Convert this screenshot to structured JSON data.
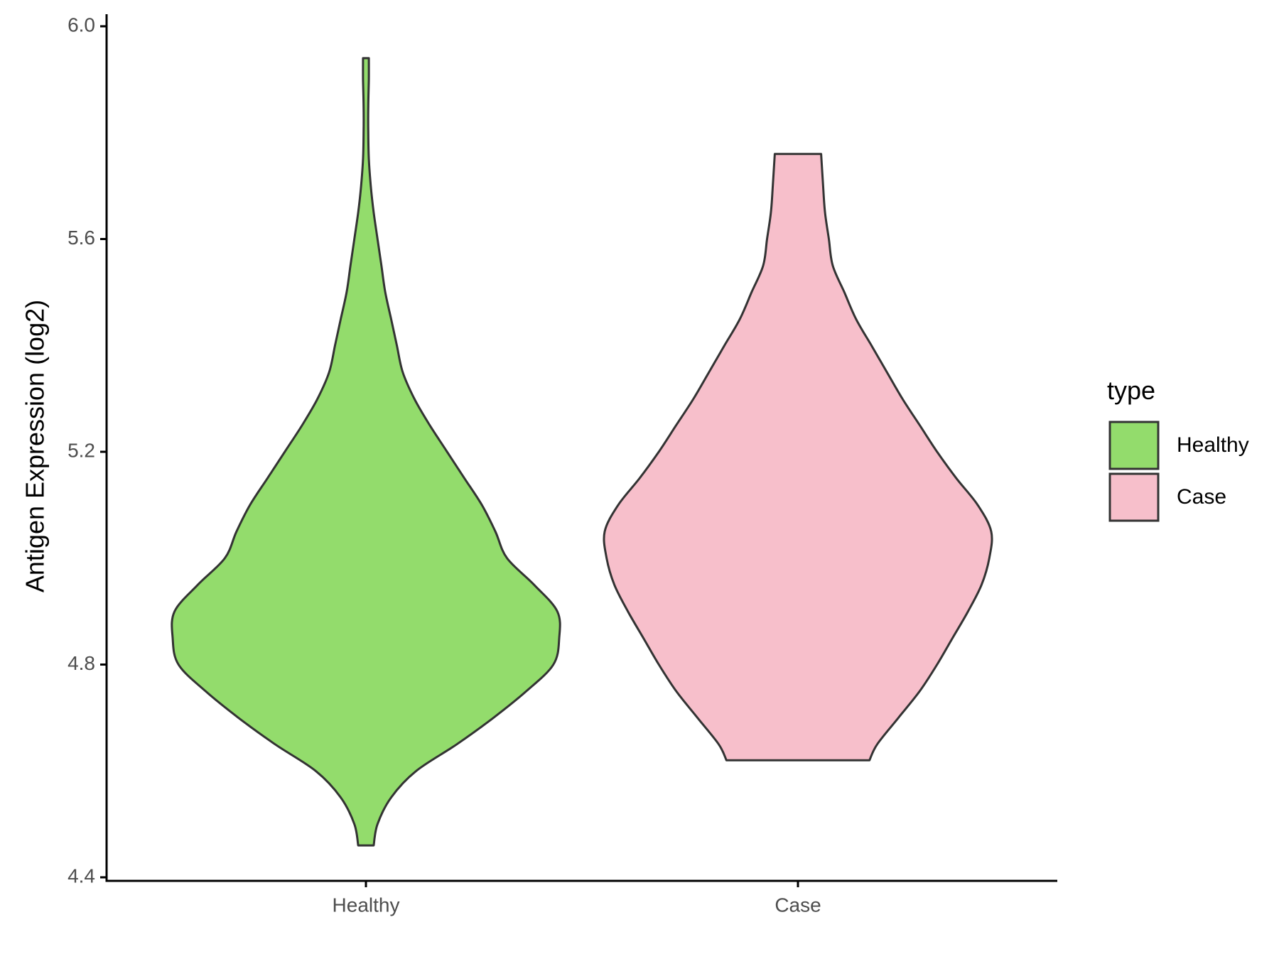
{
  "chart_data": {
    "type": "violin",
    "ylabel": "Antigen Expression (log2)",
    "xlabel": "",
    "ylim": [
      4.4,
      6.0
    ],
    "yticks": [
      "4.4",
      "4.8",
      "5.2",
      "5.6",
      "6.0"
    ],
    "categories": [
      "Healthy",
      "Case"
    ],
    "grid": false,
    "legend": {
      "title": "type",
      "placement": "right",
      "entries": [
        {
          "label": "Healthy",
          "color": "#93DC6C"
        },
        {
          "label": "Case",
          "color": "#F7BFCB"
        }
      ]
    },
    "series": [
      {
        "category": "Healthy",
        "color": "#93DC6C",
        "min": 4.46,
        "max": 5.94,
        "density_profile": [
          [
            4.46,
            0.04
          ],
          [
            4.5,
            0.06
          ],
          [
            4.55,
            0.13
          ],
          [
            4.6,
            0.26
          ],
          [
            4.65,
            0.47
          ],
          [
            4.7,
            0.66
          ],
          [
            4.75,
            0.83
          ],
          [
            4.8,
            0.97
          ],
          [
            4.85,
            1.0
          ],
          [
            4.9,
            0.99
          ],
          [
            4.95,
            0.87
          ],
          [
            5.0,
            0.73
          ],
          [
            5.05,
            0.67
          ],
          [
            5.1,
            0.6
          ],
          [
            5.15,
            0.51
          ],
          [
            5.2,
            0.42
          ],
          [
            5.25,
            0.33
          ],
          [
            5.3,
            0.25
          ],
          [
            5.35,
            0.19
          ],
          [
            5.4,
            0.16
          ],
          [
            5.45,
            0.13
          ],
          [
            5.5,
            0.1
          ],
          [
            5.55,
            0.08
          ],
          [
            5.6,
            0.06
          ],
          [
            5.65,
            0.04
          ],
          [
            5.7,
            0.025
          ],
          [
            5.75,
            0.015
          ],
          [
            5.8,
            0.012
          ],
          [
            5.85,
            0.012
          ],
          [
            5.9,
            0.015
          ],
          [
            5.94,
            0.015
          ]
        ]
      },
      {
        "category": "Case",
        "color": "#F7BFCB",
        "min": 4.62,
        "max": 5.76,
        "density_profile": [
          [
            4.62,
            0.37
          ],
          [
            4.65,
            0.41
          ],
          [
            4.7,
            0.52
          ],
          [
            4.75,
            0.63
          ],
          [
            4.8,
            0.72
          ],
          [
            4.85,
            0.8
          ],
          [
            4.9,
            0.88
          ],
          [
            4.95,
            0.95
          ],
          [
            5.0,
            0.99
          ],
          [
            5.05,
            1.0
          ],
          [
            5.1,
            0.93
          ],
          [
            5.15,
            0.82
          ],
          [
            5.2,
            0.72
          ],
          [
            5.25,
            0.63
          ],
          [
            5.3,
            0.54
          ],
          [
            5.35,
            0.46
          ],
          [
            5.4,
            0.38
          ],
          [
            5.45,
            0.3
          ],
          [
            5.5,
            0.24
          ],
          [
            5.55,
            0.18
          ],
          [
            5.6,
            0.16
          ],
          [
            5.65,
            0.14
          ],
          [
            5.7,
            0.13
          ],
          [
            5.76,
            0.12
          ]
        ]
      }
    ]
  }
}
